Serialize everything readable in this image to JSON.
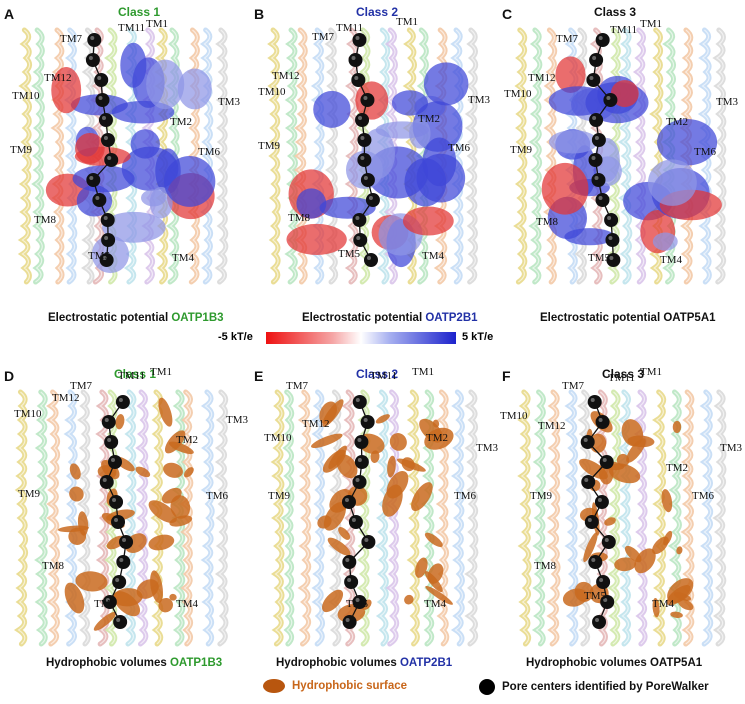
{
  "panels": [
    {
      "letter": "A",
      "class_label": "Class 1",
      "class_color": "#2e9a2e",
      "mode": "electrostatic"
    },
    {
      "letter": "B",
      "class_label": "Class 2",
      "class_color": "#2231a6",
      "mode": "electrostatic"
    },
    {
      "letter": "C",
      "class_label": "Class 3",
      "class_color": "#111111",
      "mode": "electrostatic"
    },
    {
      "letter": "D",
      "class_label": "Class 1",
      "class_color": "#2e9a2e",
      "mode": "hydrophobic"
    },
    {
      "letter": "E",
      "class_label": "Class 2",
      "class_color": "#2231a6",
      "mode": "hydrophobic"
    },
    {
      "letter": "F",
      "class_label": "Class 3",
      "class_color": "#111111",
      "mode": "hydrophobic"
    }
  ],
  "tm_labels": [
    "TM1",
    "TM2",
    "TM3",
    "TM4",
    "TM5",
    "TM6",
    "TM7",
    "TM8",
    "TM9",
    "TM10",
    "TM11",
    "TM12"
  ],
  "captions": {
    "a_prefix": "Electrostatic potential ",
    "a_name": "OATP1B3",
    "b_prefix": "Electrostatic potential ",
    "b_name": "OATP2B1",
    "c_text": "Electrostatic potential OATP5A1",
    "d_prefix": "Hydrophobic volumes ",
    "d_name": "OATP1B3",
    "e_prefix": "Hydrophobic volumes ",
    "e_name": "OATP2B1",
    "f_text": "Hydrophobic volumes OATP5A1"
  },
  "colorbar": {
    "min_label": "-5 kT/e",
    "max_label": "5 kT/e"
  },
  "legend": {
    "hydrophobic_label": "Hydrophobic surface",
    "pore_label": "Pore centers identified by PoreWalker",
    "hydrophobic_color": "#b8560f",
    "pore_color": "#000000"
  },
  "colors": {
    "positive": "#3f47d8",
    "negative": "#e23434",
    "hydrophobic": "#c96a1e",
    "class1": "#2e9a2e",
    "class2": "#2231a6"
  }
}
